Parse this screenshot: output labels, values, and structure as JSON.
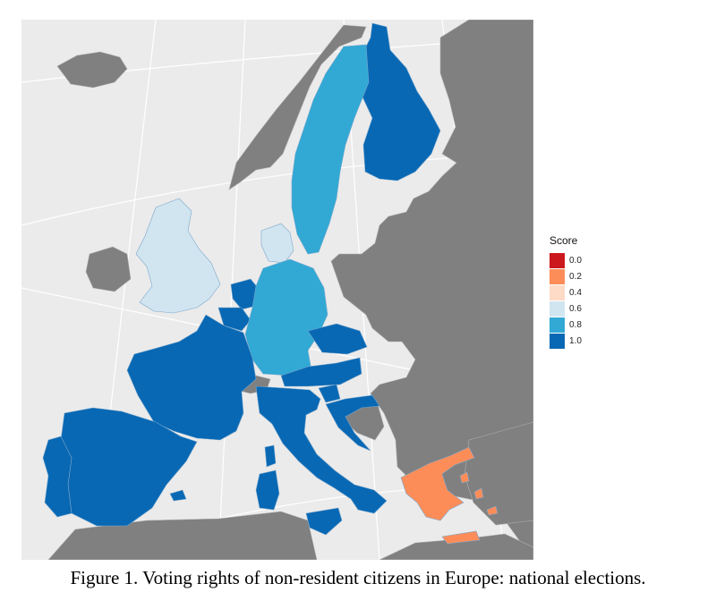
{
  "caption": "Figure 1. Voting rights of non-resident citizens in Europe: national elections.",
  "legend": {
    "title": "Score",
    "items": [
      {
        "label": "0.0",
        "color": "#cb181d"
      },
      {
        "label": "0.2",
        "color": "#fc8d59"
      },
      {
        "label": "0.4",
        "color": "#fddbc7"
      },
      {
        "label": "0.6",
        "color": "#d1e5f0"
      },
      {
        "label": "0.8",
        "color": "#31a9d4"
      },
      {
        "label": "1.0",
        "color": "#0868b4"
      }
    ]
  },
  "colors": {
    "background": "#ebebeb",
    "non_eu": "#808080",
    "border": "#b0b0b0",
    "graticule": "#ffffff"
  },
  "country_scores": {
    "Finland": 1.0,
    "Sweden": 0.8,
    "Denmark": 0.6,
    "United Kingdom": 0.6,
    "Germany": 0.8,
    "Netherlands": 1.0,
    "Belgium": 1.0,
    "France": 1.0,
    "Spain": 1.0,
    "Portugal": 1.0,
    "Italy": 1.0,
    "Austria": 1.0,
    "Czech Republic": 1.0,
    "Slovenia": 1.0,
    "Croatia": 1.0,
    "Greece": 0.2
  }
}
